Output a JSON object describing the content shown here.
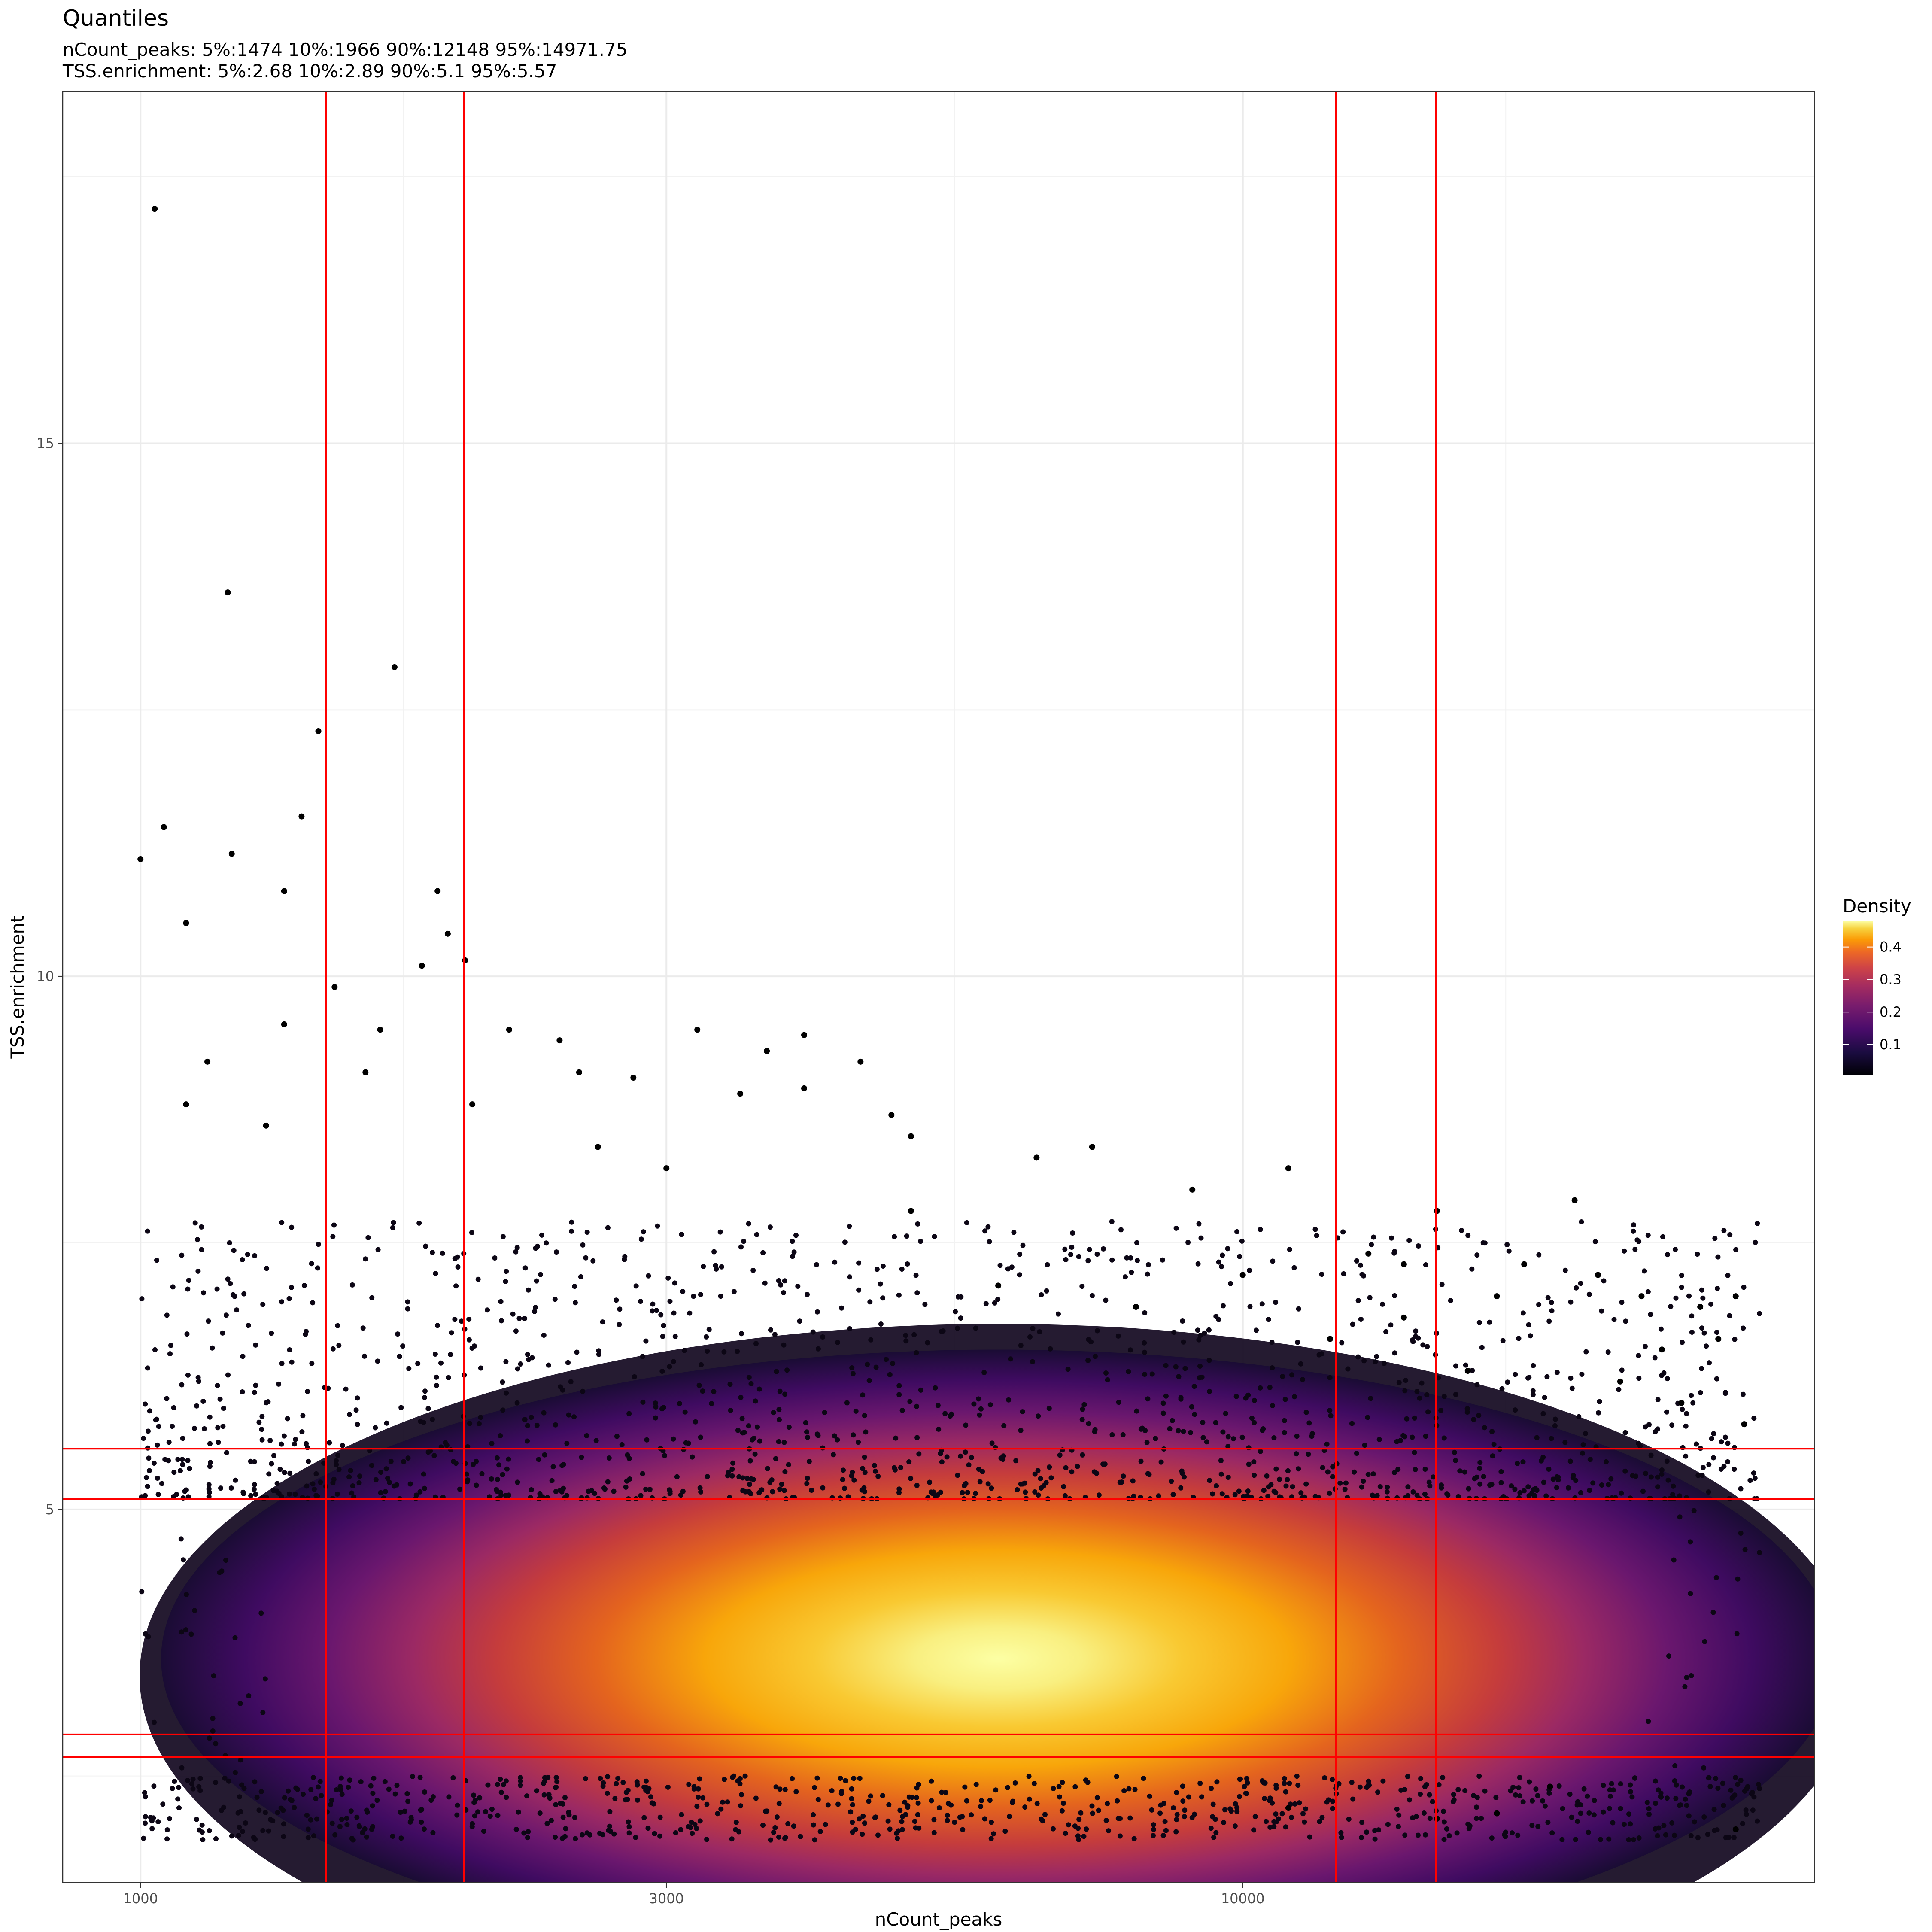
{
  "chart_data": {
    "type": "scatter",
    "title": "Quantiles",
    "subtitle_lines": [
      "nCount_peaks: 5%:1474 10%:1966 90%:12148 95%:14971.75",
      "TSS.enrichment: 5%:2.68 10%:2.89 90%:5.1 95%:5.57"
    ],
    "xlabel": "nCount_peaks",
    "ylabel": "TSS.enrichment",
    "x_scale": "log10",
    "xlim": [
      850,
      33000
    ],
    "ylim": [
      1.5,
      18.3
    ],
    "x_ticks": [
      {
        "value": 1000,
        "label": "1000"
      },
      {
        "value": 3000,
        "label": "3000"
      },
      {
        "value": 10000,
        "label": "10000"
      }
    ],
    "x_minor_grid": [
      1732,
      5477,
      17321
    ],
    "y_ticks": [
      {
        "value": 5,
        "label": "5"
      },
      {
        "value": 10,
        "label": "10"
      },
      {
        "value": 15,
        "label": "15"
      }
    ],
    "y_minor_grid": [
      2.5,
      7.5,
      12.5,
      17.5
    ],
    "grid": true,
    "vlines": [
      1474,
      1966,
      12148,
      14971.75
    ],
    "hlines": [
      2.68,
      2.89,
      5.1,
      5.57
    ],
    "line_color": "#FF0000",
    "color_scale": "inferno",
    "legend": {
      "title": "Density",
      "position": "right",
      "ticks": [
        {
          "value": 0.1,
          "label": "0.1"
        },
        {
          "value": 0.2,
          "label": "0.2"
        },
        {
          "value": 0.3,
          "label": "0.3"
        },
        {
          "value": 0.4,
          "label": "0.4"
        }
      ],
      "range": [
        0.005,
        0.48
      ]
    },
    "density_center": {
      "x": 6000,
      "y": 3.6
    },
    "points_outliers": [
      [
        1030,
        17.2
      ],
      [
        1200,
        13.6
      ],
      [
        1700,
        12.9
      ],
      [
        1450,
        12.3
      ],
      [
        1400,
        11.5
      ],
      [
        1050,
        11.4
      ],
      [
        1000,
        11.1
      ],
      [
        1210,
        11.15
      ],
      [
        1350,
        10.8
      ],
      [
        1860,
        10.8
      ],
      [
        1900,
        10.4
      ],
      [
        1100,
        10.5
      ],
      [
        1970,
        10.15
      ],
      [
        1800,
        10.1
      ],
      [
        1500,
        9.9
      ],
      [
        1650,
        9.5
      ],
      [
        2160,
        9.5
      ],
      [
        2400,
        9.4
      ],
      [
        3200,
        9.5
      ],
      [
        3700,
        9.3
      ],
      [
        4000,
        9.45
      ],
      [
        1350,
        9.55
      ],
      [
        1150,
        9.2
      ],
      [
        1600,
        9.1
      ],
      [
        4500,
        9.2
      ],
      [
        2500,
        9.1
      ],
      [
        2800,
        9.05
      ],
      [
        4000,
        8.95
      ],
      [
        3500,
        8.9
      ],
      [
        4800,
        8.7
      ],
      [
        5000,
        8.5
      ],
      [
        6500,
        8.3
      ],
      [
        7300,
        8.4
      ],
      [
        9000,
        8.0
      ],
      [
        11000,
        8.2
      ],
      [
        13000,
        7.4
      ],
      [
        14000,
        7.3
      ],
      [
        15000,
        7.8
      ],
      [
        17000,
        7.0
      ],
      [
        18000,
        7.3
      ],
      [
        20000,
        7.9
      ],
      [
        21000,
        7.2
      ],
      [
        23000,
        7.0
      ],
      [
        26000,
        6.9
      ],
      [
        28000,
        7.0
      ],
      [
        27000,
        6.6
      ],
      [
        24000,
        6.5
      ],
      [
        22000,
        6.2
      ],
      [
        25000,
        6.0
      ],
      [
        28500,
        5.8
      ],
      [
        16000,
        6.3
      ],
      [
        14000,
        6.8
      ],
      [
        12000,
        6.6
      ],
      [
        10000,
        7.2
      ],
      [
        8000,
        6.9
      ],
      [
        6000,
        7.1
      ],
      [
        5000,
        7.8
      ],
      [
        3000,
        8.2
      ],
      [
        2600,
        8.4
      ],
      [
        2000,
        8.8
      ],
      [
        1300,
        8.6
      ],
      [
        1100,
        8.8
      ],
      [
        28000,
        2.0
      ],
      [
        15000,
        2.1
      ],
      [
        11000,
        2.2
      ],
      [
        17000,
        2.15
      ],
      [
        19000,
        2.4
      ]
    ]
  }
}
